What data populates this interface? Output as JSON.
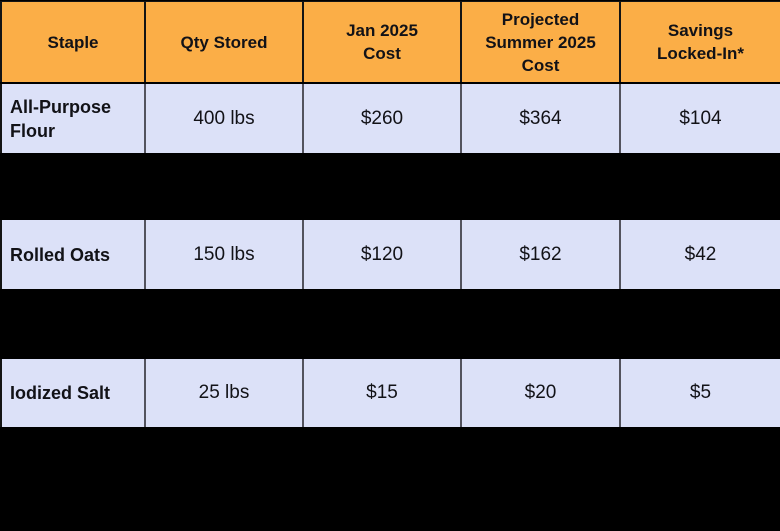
{
  "colors": {
    "background": "#000000",
    "header_bg": "#FBAE47",
    "row_bg": "#DCE1F8",
    "text": "#121217",
    "header_divider": "#141414",
    "row_divider": "#53535E"
  },
  "table": {
    "header": {
      "cells": [
        "Staple",
        "Qty Stored",
        "Jan 2025\nCost",
        "Projected\nSummer 2025\nCost",
        "Savings\nLocked-In*"
      ]
    },
    "rows": [
      {
        "cells": [
          "All-Purpose Flour",
          "400 lbs",
          "$260",
          "$364",
          "$104"
        ]
      },
      {
        "cells": [
          "Rolled Oats",
          "150 lbs",
          "$120",
          "$162",
          "$42"
        ]
      },
      {
        "cells": [
          "Iodized Salt",
          "25 lbs",
          "$15",
          "$20",
          "$5"
        ]
      }
    ]
  },
  "chart_data": {
    "type": "table",
    "columns": [
      "Staple",
      "Qty Stored",
      "Jan 2025 Cost",
      "Projected Summer 2025 Cost",
      "Savings Locked-In*"
    ],
    "rows": [
      [
        "All-Purpose Flour",
        "400 lbs",
        "$260",
        "$364",
        "$104"
      ],
      [
        "Rolled Oats",
        "150 lbs",
        "$120",
        "$162",
        "$42"
      ],
      [
        "Iodized Salt",
        "25 lbs",
        "$15",
        "$20",
        "$5"
      ]
    ],
    "notes": "Rows between data rows are fully blacked out; footnote marker * appears on Savings Locked-In header"
  }
}
